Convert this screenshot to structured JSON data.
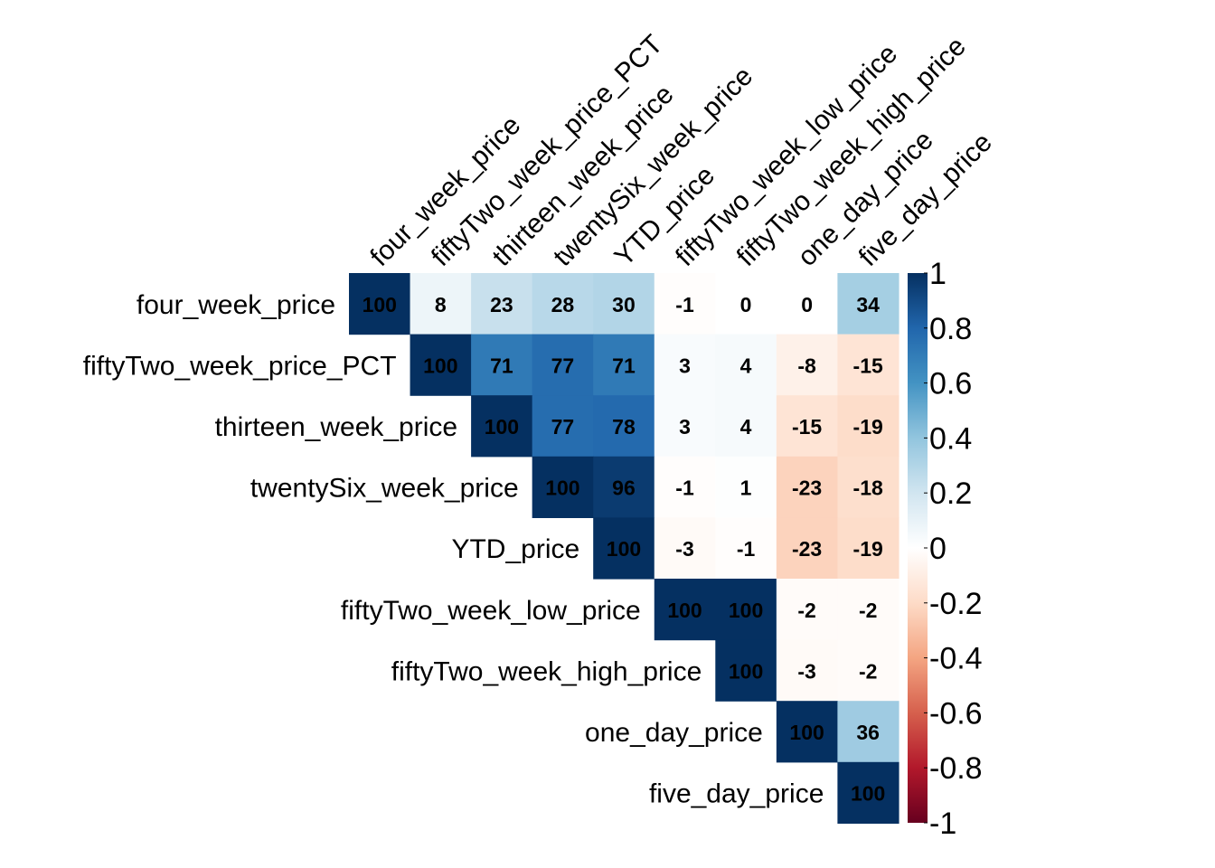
{
  "chart_data": {
    "type": "heatmap",
    "title": "",
    "variables": [
      "four_week_price",
      "fiftyTwo_week_price_PCT",
      "thirteen_week_price",
      "twentySix_week_price",
      "YTD_price",
      "fiftyTwo_week_low_price",
      "fiftyTwo_week_high_price",
      "one_day_price",
      "five_day_price"
    ],
    "matrix_shape": "upper-triangle",
    "values_percent": [
      [
        100,
        8,
        23,
        28,
        30,
        -1,
        0,
        0,
        34
      ],
      [
        null,
        100,
        71,
        77,
        71,
        3,
        4,
        -8,
        -15
      ],
      [
        null,
        null,
        100,
        77,
        78,
        3,
        4,
        -15,
        -19
      ],
      [
        null,
        null,
        null,
        100,
        96,
        -1,
        1,
        -23,
        -18
      ],
      [
        null,
        null,
        null,
        null,
        100,
        -3,
        -1,
        -23,
        -19
      ],
      [
        null,
        null,
        null,
        null,
        null,
        100,
        100,
        -2,
        -2
      ],
      [
        null,
        null,
        null,
        null,
        null,
        null,
        100,
        -3,
        -2
      ],
      [
        null,
        null,
        null,
        null,
        null,
        null,
        null,
        100,
        36
      ],
      [
        null,
        null,
        null,
        null,
        null,
        null,
        null,
        null,
        100
      ]
    ],
    "colorbar": {
      "range": [
        -1,
        1
      ],
      "tick_labels": [
        "1",
        "0.8",
        "0.6",
        "0.4",
        "0.2",
        "0",
        "-0.2",
        "-0.4",
        "-0.6",
        "-0.8",
        "-1"
      ],
      "colors_low_to_high": [
        "#67001F",
        "#B2182B",
        "#D6604D",
        "#F4A582",
        "#FDDBC7",
        "#FFFFFF",
        "#D1E5F0",
        "#92C5DE",
        "#4393C3",
        "#2166AC",
        "#053061"
      ]
    }
  }
}
